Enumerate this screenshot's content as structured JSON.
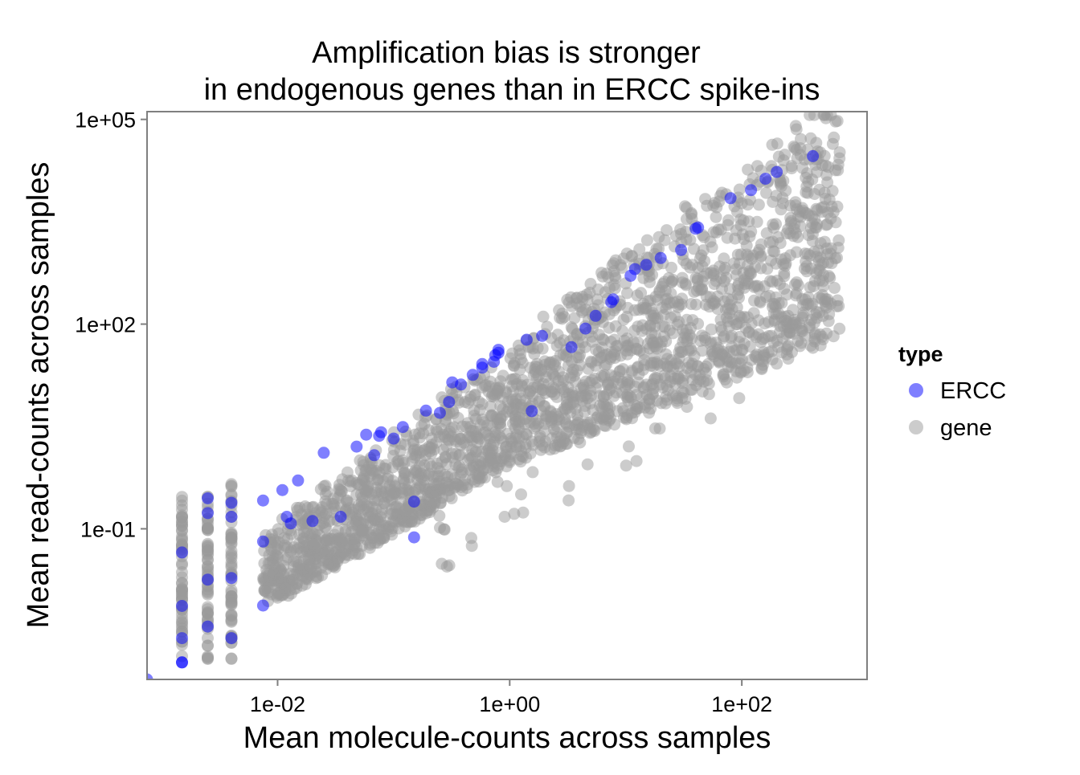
{
  "chart_data": {
    "type": "scatter",
    "title": [
      "Amplification bias is stronger",
      "in endogenous genes than in ERCC spike-ins"
    ],
    "xlabel": "Mean molecule-counts across samples",
    "ylabel": "Mean read-counts across samples",
    "x_scale": "log10",
    "y_scale": "log10",
    "xlim": [
      0.00075,
      1200
    ],
    "ylim": [
      0.00062,
      130000
    ],
    "x_ticks": [
      {
        "value": 0.01,
        "label": "1e-02"
      },
      {
        "value": 1,
        "label": "1e+00"
      },
      {
        "value": 100,
        "label": "1e+02"
      }
    ],
    "y_ticks": [
      {
        "value": 0.1,
        "label": "1e-01"
      },
      {
        "value": 100,
        "label": "1e+02"
      },
      {
        "value": 100000,
        "label": "1e+05"
      }
    ],
    "grid": false,
    "legend": {
      "title": "type",
      "position": "right",
      "entries": [
        {
          "label": "ERCC",
          "color": "#0000FF"
        },
        {
          "label": "gene",
          "color": "#999999"
        }
      ]
    },
    "colors": {
      "ERCC": "#0000FF",
      "gene": "#999999"
    },
    "series": [
      {
        "name": "ERCC",
        "color": "#0000FF",
        "points": [
          [
            0.00075,
            0.00062
          ],
          [
            0.0015,
            0.0011
          ],
          [
            0.0015,
            0.0011
          ],
          [
            0.0015,
            0.0025
          ],
          [
            0.0015,
            0.0074
          ],
          [
            0.0015,
            0.045
          ],
          [
            0.0025,
            0.28
          ],
          [
            0.0025,
            0.17
          ],
          [
            0.0025,
            0.018
          ],
          [
            0.0025,
            0.0037
          ],
          [
            0.004,
            0.24
          ],
          [
            0.004,
            0.15
          ],
          [
            0.004,
            0.019
          ],
          [
            0.004,
            0.0025
          ],
          [
            0.0075,
            0.26
          ],
          [
            0.0075,
            0.065
          ],
          [
            0.0075,
            0.0075
          ],
          [
            0.011,
            0.37
          ],
          [
            0.012,
            0.15
          ],
          [
            0.015,
            0.51
          ],
          [
            0.013,
            0.12
          ],
          [
            0.02,
            0.13
          ],
          [
            0.025,
            1.3
          ],
          [
            0.035,
            0.15
          ],
          [
            0.048,
            1.6
          ],
          [
            0.058,
            2.4
          ],
          [
            0.068,
            1.2
          ],
          [
            0.075,
            2.3
          ],
          [
            0.078,
            2.6
          ],
          [
            0.1,
            2.1
          ],
          [
            0.12,
            3.1
          ],
          [
            0.15,
            0.25
          ],
          [
            0.15,
            0.075
          ],
          [
            0.19,
            5.4
          ],
          [
            0.25,
            5.0
          ],
          [
            0.3,
            7.2
          ],
          [
            0.32,
            14
          ],
          [
            0.38,
            13
          ],
          [
            0.48,
            18
          ],
          [
            0.58,
            23
          ],
          [
            0.58,
            26
          ],
          [
            0.73,
            28
          ],
          [
            0.75,
            35
          ],
          [
            0.8,
            38
          ],
          [
            0.8,
            42
          ],
          [
            1.4,
            59
          ],
          [
            1.55,
            5.3
          ],
          [
            1.9,
            67
          ],
          [
            3.4,
            46
          ],
          [
            4.5,
            86
          ],
          [
            5.5,
            132
          ],
          [
            7.5,
            210
          ],
          [
            7.8,
            230
          ],
          [
            11,
            510
          ],
          [
            12,
            640
          ],
          [
            15,
            740
          ],
          [
            20,
            930
          ],
          [
            30,
            1220
          ],
          [
            40,
            2500
          ],
          [
            42,
            2600
          ],
          [
            80,
            7000
          ],
          [
            120,
            9200
          ],
          [
            160,
            13500
          ],
          [
            200,
            17000
          ],
          [
            410,
            29000
          ]
        ]
      },
      {
        "name": "gene",
        "color": "#999999",
        "points": []
      }
    ]
  }
}
